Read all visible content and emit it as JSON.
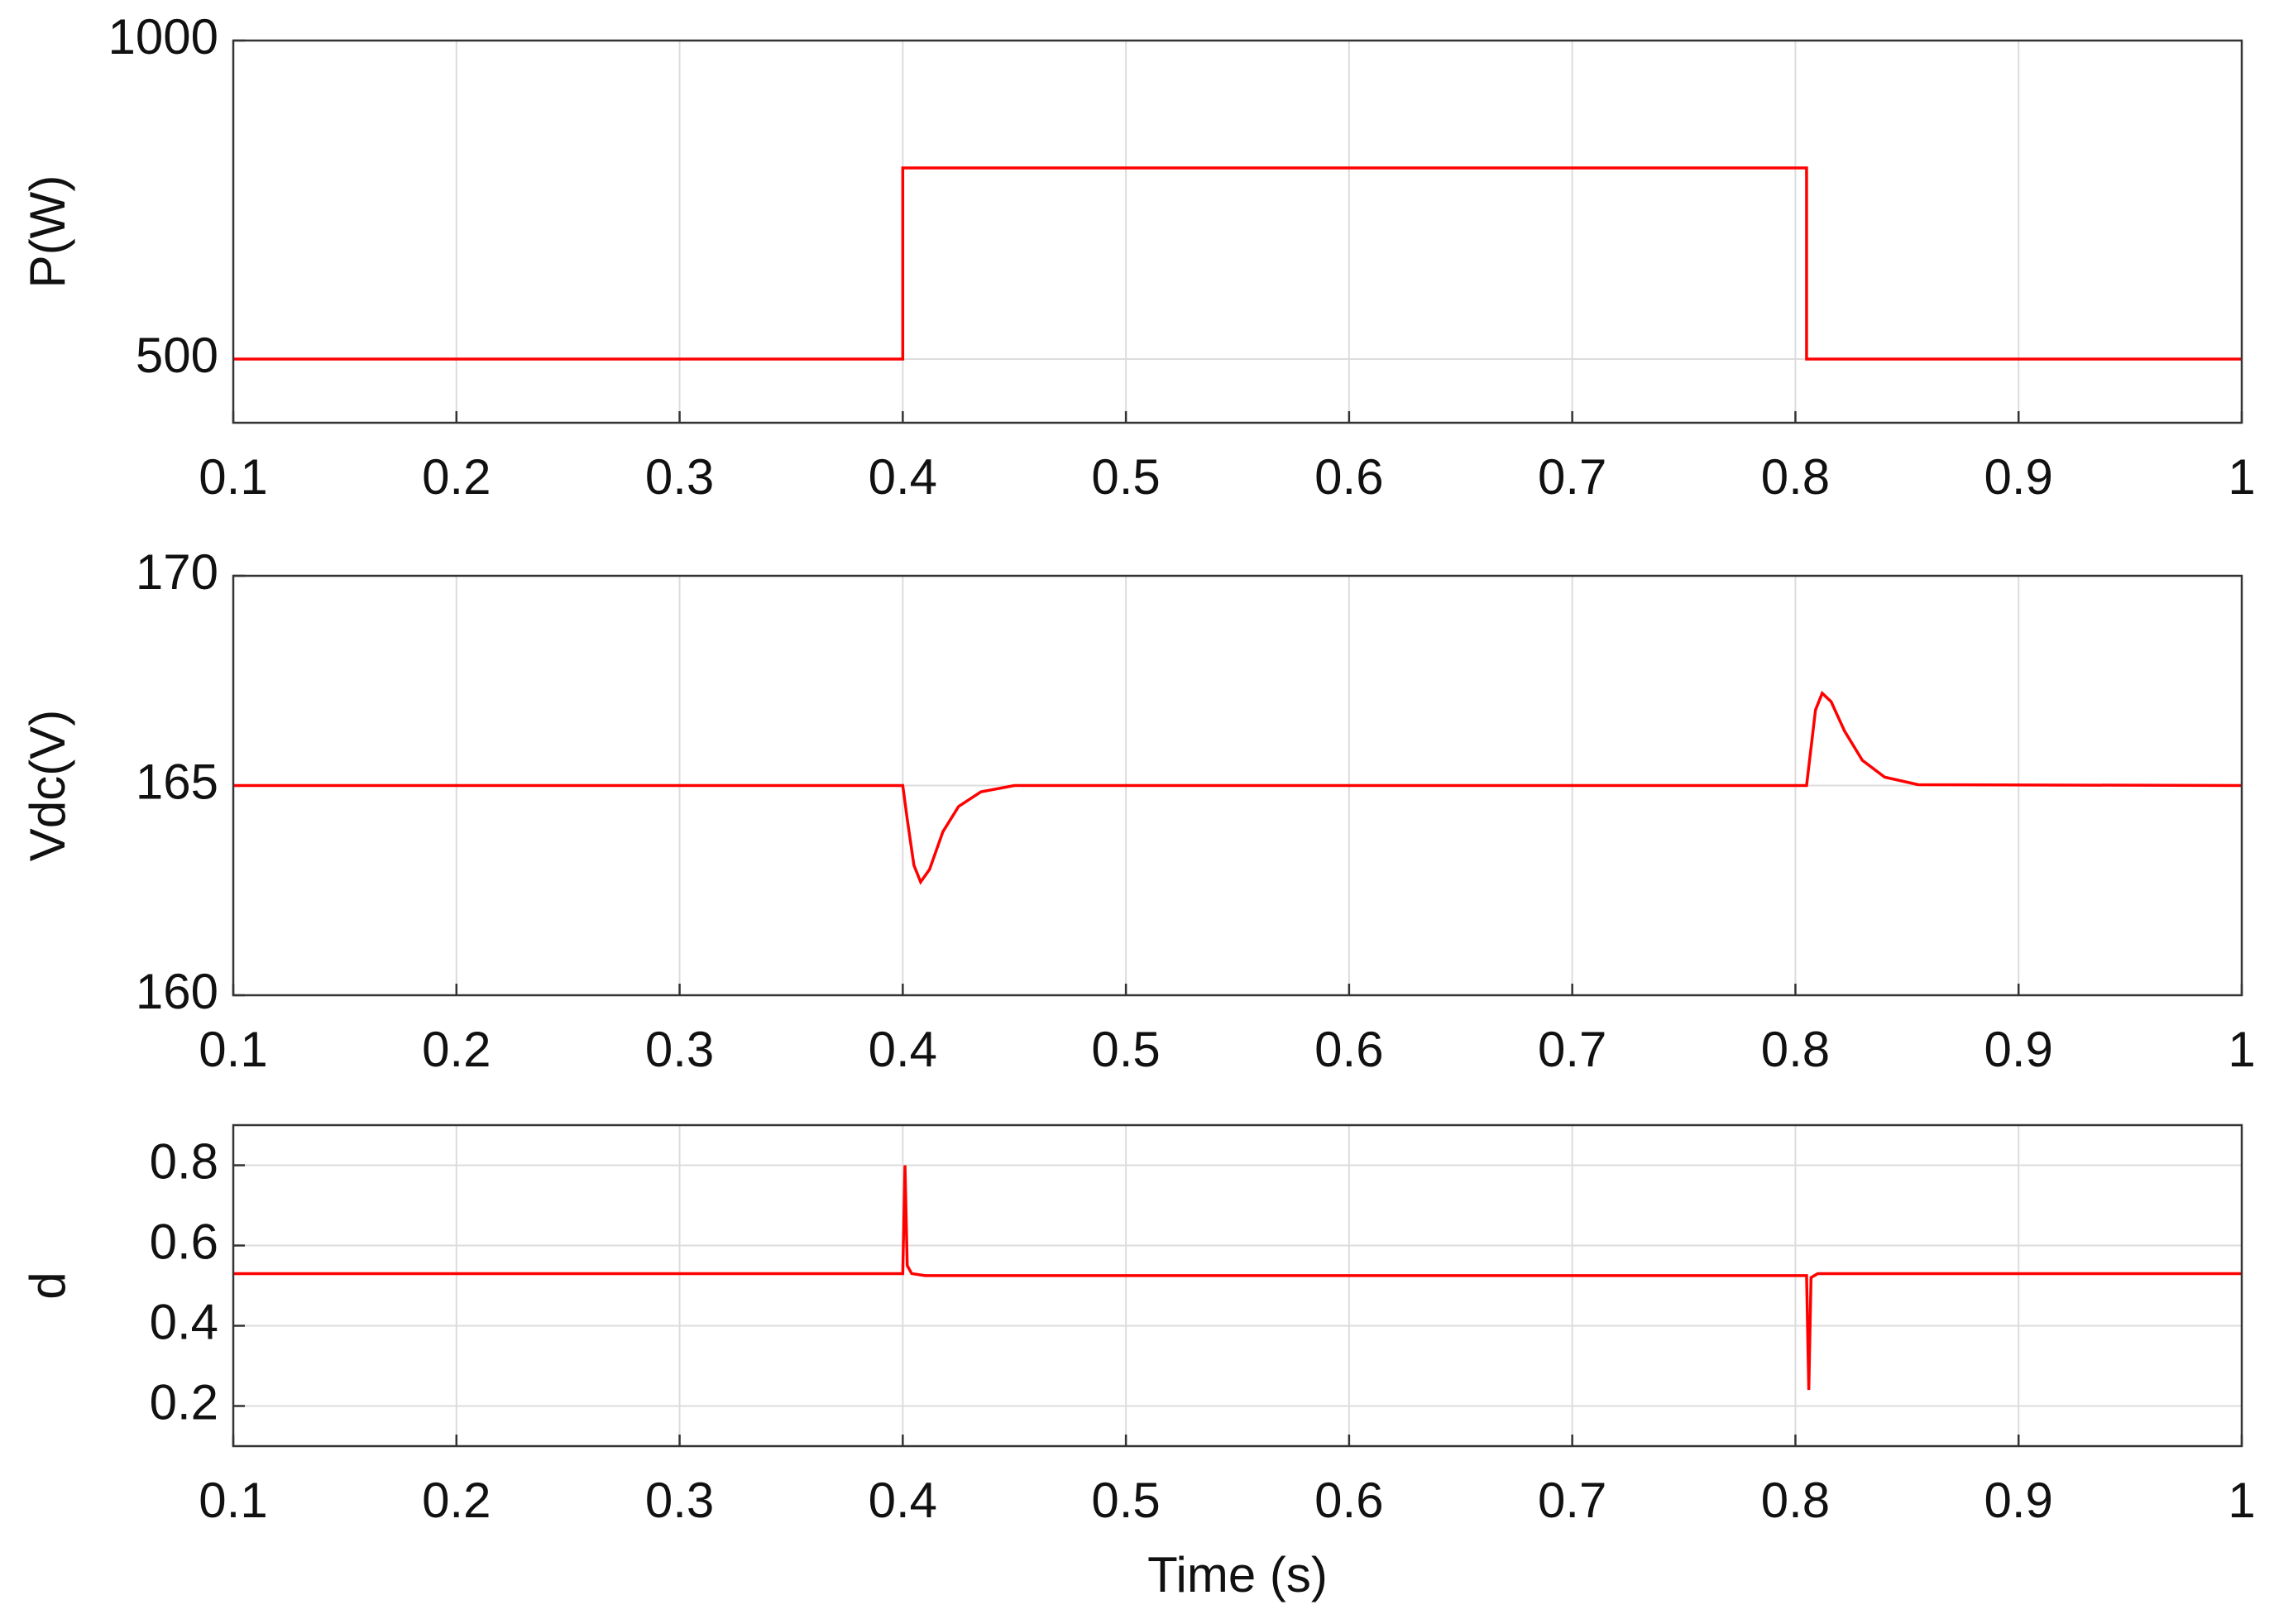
{
  "chart_data": [
    {
      "type": "line",
      "ylabel": "P(W)",
      "color": "#ff0000",
      "grid": true,
      "x": [
        0.1,
        0.4,
        0.4,
        0.805,
        0.805,
        1
      ],
      "values": [
        500,
        500,
        800,
        800,
        500,
        500
      ],
      "xlim": [
        0.1,
        1
      ],
      "xticks": [
        0.1,
        0.2,
        0.3,
        0.4,
        0.5,
        0.6,
        0.7,
        0.8,
        0.9,
        1
      ],
      "ylim": [
        400,
        1000
      ],
      "yticks": [
        500,
        1000
      ]
    },
    {
      "type": "line",
      "ylabel": "Vdc(V)",
      "color": "#ff0000",
      "grid": true,
      "x": [
        0.1,
        0.4,
        0.402,
        0.405,
        0.408,
        0.412,
        0.418,
        0.425,
        0.435,
        0.45,
        0.805,
        0.807,
        0.809,
        0.812,
        0.816,
        0.822,
        0.83,
        0.84,
        0.855,
        1
      ],
      "values": [
        165,
        165,
        164.2,
        163.1,
        162.7,
        163.0,
        163.9,
        164.5,
        164.85,
        165,
        165,
        165.9,
        166.8,
        167.2,
        167.0,
        166.3,
        165.6,
        165.2,
        165.02,
        165
      ],
      "xlim": [
        0.1,
        1
      ],
      "xticks": [
        0.1,
        0.2,
        0.3,
        0.4,
        0.5,
        0.6,
        0.7,
        0.8,
        0.9,
        1
      ],
      "ylim": [
        160,
        170
      ],
      "yticks": [
        160,
        165,
        170
      ]
    },
    {
      "type": "line",
      "ylabel": "d",
      "xlabel": "Time (s)",
      "color": "#ff0000",
      "grid": true,
      "x": [
        0.1,
        0.4,
        0.401,
        0.402,
        0.404,
        0.41,
        0.805,
        0.806,
        0.807,
        0.81,
        1
      ],
      "values": [
        0.53,
        0.53,
        0.8,
        0.55,
        0.53,
        0.525,
        0.525,
        0.24,
        0.52,
        0.53,
        0.53
      ],
      "xlim": [
        0.1,
        1
      ],
      "xticks": [
        0.1,
        0.2,
        0.3,
        0.4,
        0.5,
        0.6,
        0.7,
        0.8,
        0.9,
        1
      ],
      "ylim": [
        0.1,
        0.9
      ],
      "yticks": [
        0.2,
        0.4,
        0.6,
        0.8
      ]
    }
  ]
}
